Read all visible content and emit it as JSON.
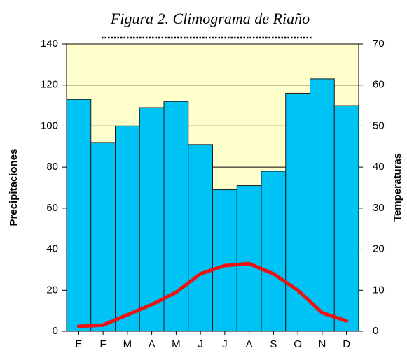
{
  "chart_data": {
    "type": "bar",
    "title": "Figura 2. Climograma de Riaño",
    "ylabel": "Precipitaciones",
    "y2label": "Temperaturas",
    "categories": [
      "E",
      "F",
      "M",
      "A",
      "M",
      "J",
      "J",
      "A",
      "S",
      "O",
      "N",
      "D"
    ],
    "series": [
      {
        "type": "bar",
        "color": "#00c3f5",
        "values": [
          113,
          92,
          100,
          109,
          112,
          91,
          69,
          71,
          78,
          116,
          123,
          110
        ]
      },
      {
        "type": "line",
        "axis": "y2",
        "color": "#ee1111",
        "values": [
          1.2,
          1.5,
          4,
          6.5,
          9.5,
          14,
          16,
          16.5,
          14,
          10,
          4.5,
          2.5
        ]
      }
    ],
    "ylim": [
      0,
      140
    ],
    "yticks": [
      0,
      20,
      40,
      60,
      80,
      100,
      120,
      140
    ],
    "y2lim": [
      0,
      70
    ],
    "y2ticks": [
      0,
      10,
      20,
      30,
      40,
      50,
      60,
      70
    ],
    "grid": true,
    "background": "#ffffcc"
  }
}
